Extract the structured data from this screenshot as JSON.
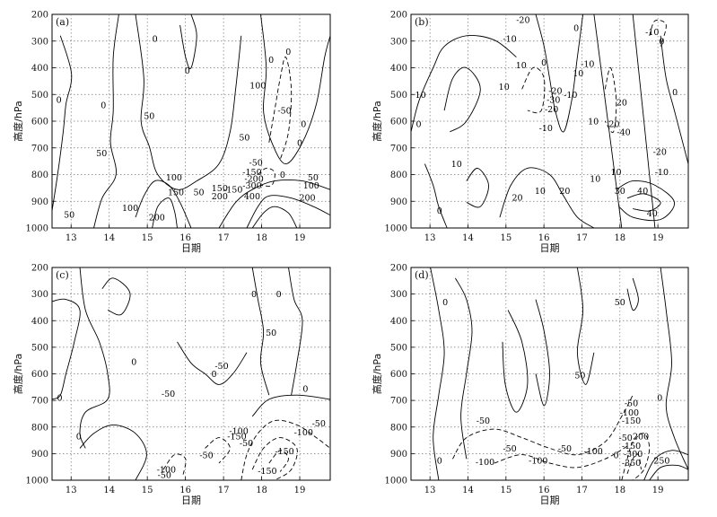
{
  "chart_data": [
    {
      "type": "contour",
      "panel_label": "(a)",
      "xlabel": "日期",
      "ylabel": "高度/hPa",
      "x_ticks": [
        13,
        14,
        15,
        16,
        17,
        18,
        19
      ],
      "y_ticks": [
        1000,
        900,
        800,
        700,
        600,
        500,
        400,
        300,
        200
      ],
      "xlim": [
        12.5,
        19.8
      ],
      "ylim": [
        1000,
        200
      ],
      "grid": true,
      "contour_labels": [
        {
          "text": "0",
          "x": 12.68,
          "y": 520
        },
        {
          "text": "0",
          "x": 13.85,
          "y": 540
        },
        {
          "text": "0",
          "x": 15.2,
          "y": 290
        },
        {
          "text": "0",
          "x": 16.05,
          "y": 410
        },
        {
          "text": "0",
          "x": 18.25,
          "y": 370
        },
        {
          "text": "0",
          "x": 19.1,
          "y": 610
        },
        {
          "text": "0",
          "x": 19.0,
          "y": 680
        },
        {
          "text": "50",
          "x": 13.8,
          "y": 720
        },
        {
          "text": "50",
          "x": 15.05,
          "y": 580
        },
        {
          "text": "50",
          "x": 16.35,
          "y": 865
        },
        {
          "text": "50",
          "x": 17.55,
          "y": 660
        },
        {
          "text": "50",
          "x": 12.95,
          "y": 950
        },
        {
          "text": "50",
          "x": 19.35,
          "y": 810
        },
        {
          "text": "-50",
          "x": 18.6,
          "y": 560
        },
        {
          "text": "-50",
          "x": 17.85,
          "y": 755
        },
        {
          "text": "100",
          "x": 14.55,
          "y": 925
        },
        {
          "text": "100",
          "x": 15.7,
          "y": 810
        },
        {
          "text": "100",
          "x": 17.9,
          "y": 465
        },
        {
          "text": "100",
          "x": 19.3,
          "y": 840
        },
        {
          "text": "150",
          "x": 15.75,
          "y": 865
        },
        {
          "text": "150",
          "x": 16.9,
          "y": 850
        },
        {
          "text": "-150",
          "x": 17.75,
          "y": 790
        },
        {
          "text": "200",
          "x": 16.9,
          "y": 880
        },
        {
          "text": "200",
          "x": 19.2,
          "y": 885
        },
        {
          "text": "-200",
          "x": 17.8,
          "y": 815
        },
        {
          "text": "-150",
          "x": 17.25,
          "y": 855
        },
        {
          "text": "200",
          "x": 15.25,
          "y": 960
        },
        {
          "text": "-300",
          "x": 17.75,
          "y": 840
        },
        {
          "text": "400",
          "x": 17.75,
          "y": 880
        },
        {
          "text": "0",
          "x": 18.55,
          "y": 800
        },
        {
          "text": "0",
          "x": 18.7,
          "y": 340
        }
      ]
    },
    {
      "type": "contour",
      "panel_label": "(b)",
      "xlabel": "日期",
      "ylabel": "高度/hPa",
      "x_ticks": [
        13,
        14,
        15,
        16,
        17,
        18,
        19
      ],
      "y_ticks": [
        1000,
        900,
        800,
        700,
        600,
        500,
        400,
        300,
        200
      ],
      "xlim": [
        12.5,
        19.8
      ],
      "ylim": [
        1000,
        200
      ],
      "grid": true,
      "contour_labels": [
        {
          "text": "0",
          "x": 12.7,
          "y": 610
        },
        {
          "text": "0",
          "x": 13.25,
          "y": 935
        },
        {
          "text": "0",
          "x": 16.0,
          "y": 380
        },
        {
          "text": "0",
          "x": 16.85,
          "y": 250
        },
        {
          "text": "0",
          "x": 19.1,
          "y": 300
        },
        {
          "text": "0",
          "x": 19.45,
          "y": 490
        },
        {
          "text": "10",
          "x": 12.75,
          "y": 500
        },
        {
          "text": "10",
          "x": 14.95,
          "y": 470
        },
        {
          "text": "10",
          "x": 15.4,
          "y": 390
        },
        {
          "text": "10",
          "x": 13.7,
          "y": 760
        },
        {
          "text": "10",
          "x": 15.9,
          "y": 860
        },
        {
          "text": "10",
          "x": 17.3,
          "y": 600
        },
        {
          "text": "10",
          "x": 16.9,
          "y": 420
        },
        {
          "text": "-10",
          "x": 15.1,
          "y": 290
        },
        {
          "text": "-10",
          "x": 17.15,
          "y": 385
        },
        {
          "text": "-10",
          "x": 18.85,
          "y": 265
        },
        {
          "text": "-10",
          "x": 16.7,
          "y": 500
        },
        {
          "text": "-10",
          "x": 19.1,
          "y": 790
        },
        {
          "text": "-10",
          "x": 16.05,
          "y": 625
        },
        {
          "text": "-20",
          "x": 16.2,
          "y": 555
        },
        {
          "text": "-20",
          "x": 16.3,
          "y": 485
        },
        {
          "text": "-20",
          "x": 19.05,
          "y": 715
        },
        {
          "text": "-20",
          "x": 15.45,
          "y": 220
        },
        {
          "text": "20",
          "x": 15.3,
          "y": 885
        },
        {
          "text": "20",
          "x": 16.55,
          "y": 860
        },
        {
          "text": "20",
          "x": 17.85,
          "y": 610
        },
        {
          "text": "20",
          "x": 18.05,
          "y": 530
        },
        {
          "text": "-30",
          "x": 16.25,
          "y": 520
        },
        {
          "text": "30",
          "x": 18.0,
          "y": 860
        },
        {
          "text": "40",
          "x": 18.6,
          "y": 860
        },
        {
          "text": "40",
          "x": 18.85,
          "y": 945
        },
        {
          "text": "-40",
          "x": 18.1,
          "y": 640
        },
        {
          "text": "10",
          "x": 17.9,
          "y": 790
        },
        {
          "text": "10",
          "x": 17.35,
          "y": 815
        }
      ]
    },
    {
      "type": "contour",
      "panel_label": "(c)",
      "xlabel": "日期",
      "ylabel": "高度/hPa",
      "x_ticks": [
        13,
        14,
        15,
        16,
        17,
        18,
        19
      ],
      "y_ticks": [
        1000,
        900,
        800,
        700,
        600,
        500,
        400,
        300,
        200
      ],
      "xlim": [
        12.5,
        19.8
      ],
      "ylim": [
        1000,
        200
      ],
      "grid": true,
      "contour_labels": [
        {
          "text": "0",
          "x": 12.7,
          "y": 690
        },
        {
          "text": "0",
          "x": 13.2,
          "y": 835
        },
        {
          "text": "0",
          "x": 14.65,
          "y": 555
        },
        {
          "text": "0",
          "x": 16.75,
          "y": 600
        },
        {
          "text": "0",
          "x": 17.8,
          "y": 300
        },
        {
          "text": "0",
          "x": 18.45,
          "y": 300
        },
        {
          "text": "0",
          "x": 19.15,
          "y": 655
        },
        {
          "text": "-50",
          "x": 16.95,
          "y": 570
        },
        {
          "text": "-50",
          "x": 15.55,
          "y": 675
        },
        {
          "text": "-50",
          "x": 19.5,
          "y": 785
        },
        {
          "text": "-50",
          "x": 16.55,
          "y": 905
        },
        {
          "text": "-50",
          "x": 15.45,
          "y": 980
        },
        {
          "text": "50",
          "x": 18.25,
          "y": 445
        },
        {
          "text": "-100",
          "x": 17.4,
          "y": 815
        },
        {
          "text": "-100",
          "x": 19.1,
          "y": 820
        },
        {
          "text": "-100",
          "x": 15.5,
          "y": 960
        },
        {
          "text": "-150",
          "x": 17.35,
          "y": 835
        },
        {
          "text": "-150",
          "x": 18.6,
          "y": 890
        },
        {
          "text": "-150",
          "x": 18.15,
          "y": 965
        },
        {
          "text": "-50",
          "x": 17.6,
          "y": 860
        }
      ]
    },
    {
      "type": "contour",
      "panel_label": "(d)",
      "xlabel": "日期",
      "ylabel": "高度/hPa",
      "x_ticks": [
        13,
        14,
        15,
        16,
        17,
        18,
        19
      ],
      "y_ticks": [
        1000,
        900,
        800,
        700,
        600,
        500,
        400,
        300,
        200
      ],
      "xlim": [
        12.5,
        19.8
      ],
      "ylim": [
        1000,
        200
      ],
      "grid": true,
      "contour_labels": [
        {
          "text": "0",
          "x": 13.4,
          "y": 330
        },
        {
          "text": "0",
          "x": 13.25,
          "y": 925
        },
        {
          "text": "0",
          "x": 19.05,
          "y": 690
        },
        {
          "text": "50",
          "x": 18.0,
          "y": 330
        },
        {
          "text": "50",
          "x": 16.95,
          "y": 605
        },
        {
          "text": "-50",
          "x": 14.4,
          "y": 775
        },
        {
          "text": "-50",
          "x": 15.1,
          "y": 880
        },
        {
          "text": "-50",
          "x": 16.55,
          "y": 880
        },
        {
          "text": "-50",
          "x": 18.3,
          "y": 710
        },
        {
          "text": "-50",
          "x": 18.15,
          "y": 840
        },
        {
          "text": "-100",
          "x": 14.45,
          "y": 930
        },
        {
          "text": "-100",
          "x": 15.85,
          "y": 925
        },
        {
          "text": "-100",
          "x": 18.25,
          "y": 745
        },
        {
          "text": "-100",
          "x": 17.3,
          "y": 890
        },
        {
          "text": "-150",
          "x": 18.3,
          "y": 775
        },
        {
          "text": "-150",
          "x": 18.3,
          "y": 870
        },
        {
          "text": "200",
          "x": 18.55,
          "y": 835
        },
        {
          "text": "-300",
          "x": 18.35,
          "y": 900
        },
        {
          "text": "-350",
          "x": 18.3,
          "y": 935
        },
        {
          "text": "250",
          "x": 19.1,
          "y": 925
        },
        {
          "text": "0",
          "x": 17.9,
          "y": 905
        }
      ]
    }
  ]
}
